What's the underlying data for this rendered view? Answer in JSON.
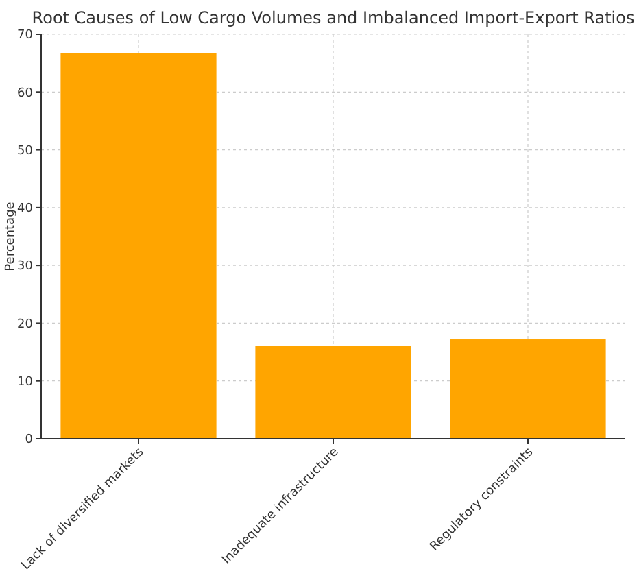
{
  "chart_data": {
    "type": "bar",
    "title": "Root Causes of Low Cargo Volumes and Imbalanced Import-Export Ratios",
    "ylabel": "Percentage",
    "categories": [
      "Lack of diversified markets",
      "Inadequate infrastructure",
      "Regulatory constraints"
    ],
    "values": [
      66.7,
      16.1,
      17.2
    ],
    "color": "#ffa500",
    "ylim": [
      0,
      70
    ],
    "yticks": [
      0,
      10,
      20,
      30,
      40,
      50,
      60,
      70
    ],
    "grid": true
  }
}
